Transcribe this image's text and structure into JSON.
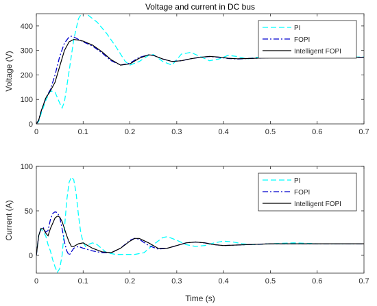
{
  "chart_data": [
    {
      "type": "line",
      "title": "Voltage and current in DC bus",
      "xlabel": "",
      "ylabel": "Voltage (V)",
      "xlim": [
        0,
        0.7
      ],
      "ylim": [
        0,
        450
      ],
      "xticks": [
        "0",
        "0.1",
        "0.2",
        "0.3",
        "0.4",
        "0.5",
        "0.6",
        "0.7"
      ],
      "yticks": [
        "0",
        "100",
        "200",
        "300",
        "400"
      ],
      "grid": false,
      "legend_position": "top-right",
      "series": [
        {
          "name": "PI",
          "style": "dashed",
          "color": "#00ffff",
          "x": [
            0,
            0.005,
            0.01,
            0.02,
            0.03,
            0.04,
            0.05,
            0.055,
            0.06,
            0.07,
            0.08,
            0.09,
            0.1,
            0.11,
            0.13,
            0.15,
            0.17,
            0.19,
            0.2,
            0.22,
            0.24,
            0.25,
            0.27,
            0.29,
            0.31,
            0.33,
            0.35,
            0.37,
            0.39,
            0.41,
            0.43,
            0.45,
            0.47,
            0.5,
            0.55,
            0.6,
            0.65,
            0.7
          ],
          "y": [
            0,
            10,
            40,
            95,
            135,
            130,
            85,
            65,
            90,
            215,
            345,
            430,
            460,
            445,
            415,
            370,
            315,
            255,
            240,
            255,
            280,
            283,
            255,
            240,
            285,
            292,
            275,
            258,
            265,
            280,
            275,
            265,
            272,
            270,
            275,
            272,
            273,
            273
          ]
        },
        {
          "name": "FOPI",
          "style": "dashdot",
          "color": "#0000cd",
          "x": [
            0,
            0.005,
            0.01,
            0.02,
            0.03,
            0.04,
            0.05,
            0.06,
            0.07,
            0.075,
            0.08,
            0.09,
            0.1,
            0.12,
            0.14,
            0.16,
            0.18,
            0.2,
            0.22,
            0.24,
            0.25,
            0.27,
            0.29,
            0.31,
            0.33,
            0.35,
            0.37,
            0.39,
            0.41,
            0.43,
            0.45,
            0.5,
            0.55,
            0.6,
            0.65,
            0.7
          ],
          "y": [
            0,
            15,
            50,
            105,
            140,
            200,
            275,
            330,
            355,
            358,
            355,
            345,
            335,
            318,
            290,
            258,
            240,
            248,
            272,
            282,
            280,
            265,
            255,
            258,
            266,
            272,
            275,
            272,
            267,
            265,
            267,
            270,
            272,
            271,
            272,
            272
          ]
        },
        {
          "name": "Intelligent FOPI",
          "style": "solid",
          "color": "#000000",
          "x": [
            0,
            0.005,
            0.01,
            0.02,
            0.03,
            0.04,
            0.05,
            0.06,
            0.07,
            0.08,
            0.09,
            0.1,
            0.12,
            0.14,
            0.16,
            0.18,
            0.2,
            0.22,
            0.24,
            0.25,
            0.27,
            0.29,
            0.31,
            0.33,
            0.35,
            0.37,
            0.39,
            0.41,
            0.43,
            0.45,
            0.5,
            0.55,
            0.6,
            0.65,
            0.7
          ],
          "y": [
            0,
            15,
            50,
            105,
            135,
            170,
            235,
            300,
            335,
            345,
            342,
            338,
            322,
            295,
            262,
            240,
            245,
            268,
            282,
            280,
            265,
            255,
            258,
            266,
            272,
            276,
            273,
            268,
            266,
            267,
            270,
            272,
            271,
            272,
            272
          ]
        }
      ]
    },
    {
      "type": "line",
      "title": "",
      "xlabel": "Time (s)",
      "ylabel": "Current (A)",
      "xlim": [
        0,
        0.7
      ],
      "ylim": [
        -20,
        100
      ],
      "xticks": [
        "0",
        "0.1",
        "0.2",
        "0.3",
        "0.4",
        "0.5",
        "0.6",
        "0.7"
      ],
      "yticks": [
        "0",
        "50",
        "100"
      ],
      "grid": false,
      "legend_position": "top-right",
      "series": [
        {
          "name": "PI",
          "style": "dashed",
          "color": "#00ffff",
          "x": [
            0,
            0.005,
            0.01,
            0.02,
            0.025,
            0.03,
            0.035,
            0.04,
            0.045,
            0.05,
            0.055,
            0.06,
            0.065,
            0.07,
            0.075,
            0.08,
            0.085,
            0.09,
            0.095,
            0.1,
            0.105,
            0.11,
            0.12,
            0.13,
            0.15,
            0.17,
            0.19,
            0.21,
            0.23,
            0.25,
            0.27,
            0.28,
            0.3,
            0.32,
            0.34,
            0.36,
            0.38,
            0.4,
            0.42,
            0.44,
            0.46,
            0.5,
            0.55,
            0.6,
            0.65,
            0.7
          ],
          "y": [
            0,
            22,
            30,
            22,
            12,
            5,
            -5,
            -13,
            -19,
            -15,
            0,
            30,
            62,
            82,
            88,
            85,
            70,
            45,
            25,
            15,
            10,
            12,
            14,
            12,
            3,
            1,
            1,
            1,
            3,
            12,
            20,
            21,
            17,
            12,
            10,
            11,
            14,
            16,
            15,
            13,
            12,
            13,
            14,
            13,
            13,
            13
          ]
        },
        {
          "name": "FOPI",
          "style": "dashdot",
          "color": "#0000cd",
          "x": [
            0,
            0.005,
            0.01,
            0.015,
            0.02,
            0.025,
            0.03,
            0.035,
            0.04,
            0.045,
            0.05,
            0.055,
            0.06,
            0.065,
            0.07,
            0.08,
            0.09,
            0.1,
            0.12,
            0.14,
            0.16,
            0.18,
            0.2,
            0.21,
            0.22,
            0.24,
            0.26,
            0.28,
            0.3,
            0.32,
            0.34,
            0.36,
            0.38,
            0.4,
            0.45,
            0.5,
            0.55,
            0.6,
            0.65,
            0.7
          ],
          "y": [
            0,
            22,
            30,
            31,
            26,
            28,
            40,
            47,
            49,
            48,
            43,
            30,
            15,
            5,
            0,
            8,
            10,
            8,
            5,
            3,
            3,
            8,
            17,
            19,
            18,
            11,
            7,
            8,
            11,
            14,
            15,
            14,
            12,
            11,
            12,
            13,
            13,
            13,
            13,
            13
          ]
        },
        {
          "name": "Intelligent FOPI",
          "style": "solid",
          "color": "#000000",
          "x": [
            0,
            0.005,
            0.01,
            0.015,
            0.02,
            0.025,
            0.03,
            0.035,
            0.04,
            0.045,
            0.05,
            0.055,
            0.06,
            0.065,
            0.07,
            0.075,
            0.08,
            0.09,
            0.1,
            0.12,
            0.14,
            0.16,
            0.18,
            0.2,
            0.21,
            0.22,
            0.24,
            0.26,
            0.28,
            0.3,
            0.32,
            0.34,
            0.36,
            0.38,
            0.4,
            0.45,
            0.5,
            0.55,
            0.6,
            0.65,
            0.7
          ],
          "y": [
            0,
            22,
            30,
            30,
            25,
            22,
            30,
            36,
            42,
            44,
            43,
            38,
            30,
            22,
            15,
            10,
            10,
            13,
            14,
            8,
            4,
            3,
            8,
            16,
            19,
            19,
            14,
            8,
            8,
            11,
            14,
            15,
            14,
            12,
            11,
            12,
            13,
            13,
            13,
            13,
            13
          ]
        }
      ]
    }
  ]
}
